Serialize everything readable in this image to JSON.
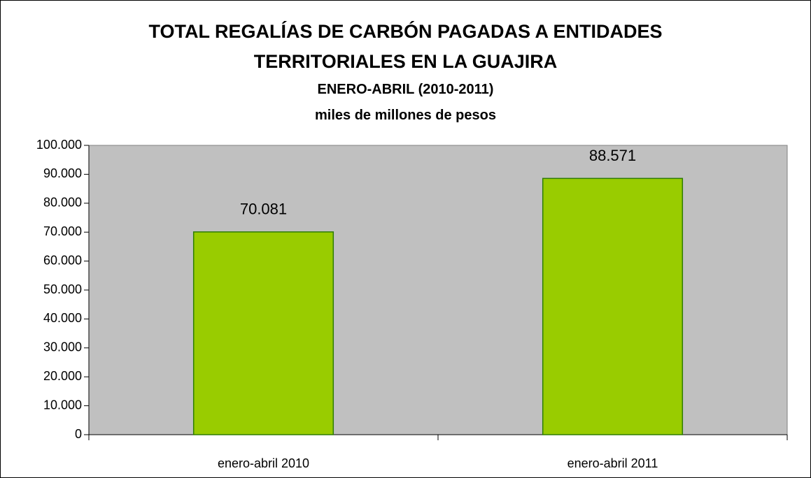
{
  "chart_data": {
    "type": "bar",
    "title": "TOTAL REGALÍAS DE CARBÓN PAGADAS A ENTIDADES TERRITORIALES EN LA GUAJIRA",
    "subtitle": "ENERO-ABRIL (2010-2011)",
    "units": "miles de millones de pesos",
    "categories": [
      "enero-abril 2010",
      "enero-abril 2011"
    ],
    "values": [
      70081,
      88571
    ],
    "value_labels": [
      "70.081",
      "88.571"
    ],
    "color": "#99cc00",
    "ylim": [
      0,
      100000
    ],
    "yticks": [
      0,
      {
        "value": 10000,
        "label": "10.000"
      },
      {
        "value": 20000,
        "label": "20.000"
      },
      {
        "value": 30000,
        "label": "30.000"
      },
      {
        "value": 40000,
        "label": "40.000"
      },
      {
        "value": 50000,
        "label": "50.000"
      },
      {
        "value": 60000,
        "label": "60.000"
      },
      {
        "value": 70000,
        "label": "70.000"
      },
      {
        "value": 80000,
        "label": "80.000"
      },
      {
        "value": 90000,
        "label": "90.000"
      },
      {
        "value": 100000,
        "label": "100.000"
      }
    ],
    "grid": false
  }
}
